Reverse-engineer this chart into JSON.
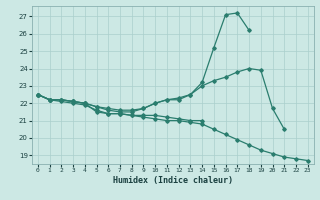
{
  "xlabel": "Humidex (Indice chaleur)",
  "bg_color": "#cce8e4",
  "grid_color": "#aacfcc",
  "line_color": "#2a7d6e",
  "ylim": [
    18.5,
    27.6
  ],
  "xlim": [
    -0.5,
    23.5
  ],
  "yticks": [
    19,
    20,
    21,
    22,
    23,
    24,
    25,
    26,
    27
  ],
  "xticks": [
    0,
    1,
    2,
    3,
    4,
    5,
    6,
    7,
    8,
    9,
    10,
    11,
    12,
    13,
    14,
    15,
    16,
    17,
    18,
    19,
    20,
    21,
    22,
    23
  ],
  "line_min": {
    "x": [
      0,
      1,
      2,
      3,
      4,
      5,
      6,
      7,
      8,
      9,
      10,
      11,
      12,
      13,
      14,
      15,
      16,
      17,
      18,
      19,
      20,
      21,
      22,
      23
    ],
    "y": [
      22.5,
      22.2,
      22.1,
      22.0,
      21.9,
      21.6,
      21.4,
      21.4,
      21.3,
      21.2,
      21.1,
      21.0,
      21.0,
      20.9,
      20.8,
      20.5,
      20.2,
      19.9,
      19.6,
      19.3,
      19.1,
      18.9,
      18.8,
      18.7
    ]
  },
  "line_max": {
    "x": [
      0,
      1,
      2,
      3,
      4,
      5,
      6,
      7,
      8,
      9,
      10,
      11,
      12,
      13,
      14,
      15,
      16,
      17,
      18
    ],
    "y": [
      22.5,
      22.2,
      22.2,
      22.1,
      22.0,
      21.8,
      21.6,
      21.5,
      21.5,
      21.7,
      22.0,
      22.2,
      22.2,
      22.5,
      23.2,
      25.2,
      27.1,
      27.2,
      26.2
    ]
  },
  "line_mid": {
    "x": [
      0,
      1,
      2,
      3,
      4,
      5,
      6,
      7,
      8,
      9,
      10,
      11,
      12,
      13,
      14,
      15,
      16,
      17,
      18,
      19,
      20,
      21
    ],
    "y": [
      22.5,
      22.2,
      22.2,
      22.1,
      22.0,
      21.8,
      21.7,
      21.6,
      21.6,
      21.7,
      22.0,
      22.2,
      22.3,
      22.5,
      23.0,
      23.3,
      23.5,
      23.8,
      24.0,
      23.9,
      21.7,
      20.5
    ]
  },
  "line_flat": {
    "x": [
      0,
      1,
      2,
      3,
      4,
      5,
      6,
      7,
      8,
      9,
      10,
      11,
      12,
      13,
      14
    ],
    "y": [
      22.5,
      22.2,
      22.2,
      22.1,
      22.0,
      21.5,
      21.4,
      21.4,
      21.3,
      21.3,
      21.3,
      21.2,
      21.1,
      21.0,
      21.0
    ]
  }
}
